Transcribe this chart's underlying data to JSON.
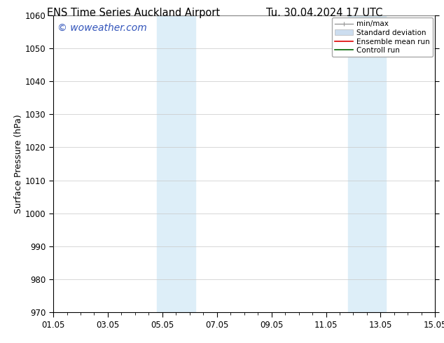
{
  "title_left": "ENS Time Series Auckland Airport",
  "title_right": "Tu. 30.04.2024 17 UTC",
  "ylabel": "Surface Pressure (hPa)",
  "ylim": [
    970,
    1060
  ],
  "yticks": [
    970,
    980,
    990,
    1000,
    1010,
    1020,
    1030,
    1040,
    1050,
    1060
  ],
  "xtick_labels": [
    "01.05",
    "03.05",
    "05.05",
    "07.05",
    "09.05",
    "11.05",
    "13.05",
    "15.05"
  ],
  "xtick_positions": [
    0,
    2,
    4,
    6,
    8,
    10,
    12,
    14
  ],
  "x_total_days": 14,
  "shaded_bands": [
    {
      "x_start": 3.8,
      "x_end": 5.2,
      "color": "#ddeef8"
    },
    {
      "x_start": 10.8,
      "x_end": 12.2,
      "color": "#ddeef8"
    }
  ],
  "watermark_text": "© woweather.com",
  "watermark_color": "#3355bb",
  "watermark_fontsize": 10,
  "bg_color": "#ffffff",
  "plot_bg_color": "#ffffff",
  "grid_color": "#c8c8c8",
  "legend_items": [
    {
      "label": "min/max",
      "color": "#999999",
      "lw": 1.0,
      "style": "minmax"
    },
    {
      "label": "Standard deviation",
      "color": "#ccddef",
      "lw": 6,
      "style": "band"
    },
    {
      "label": "Ensemble mean run",
      "color": "#dd0000",
      "lw": 1.2,
      "style": "line"
    },
    {
      "label": "Controll run",
      "color": "#006600",
      "lw": 1.2,
      "style": "line"
    }
  ],
  "title_fontsize": 10.5,
  "tick_fontsize": 8.5,
  "ylabel_fontsize": 9,
  "legend_fontsize": 7.5
}
